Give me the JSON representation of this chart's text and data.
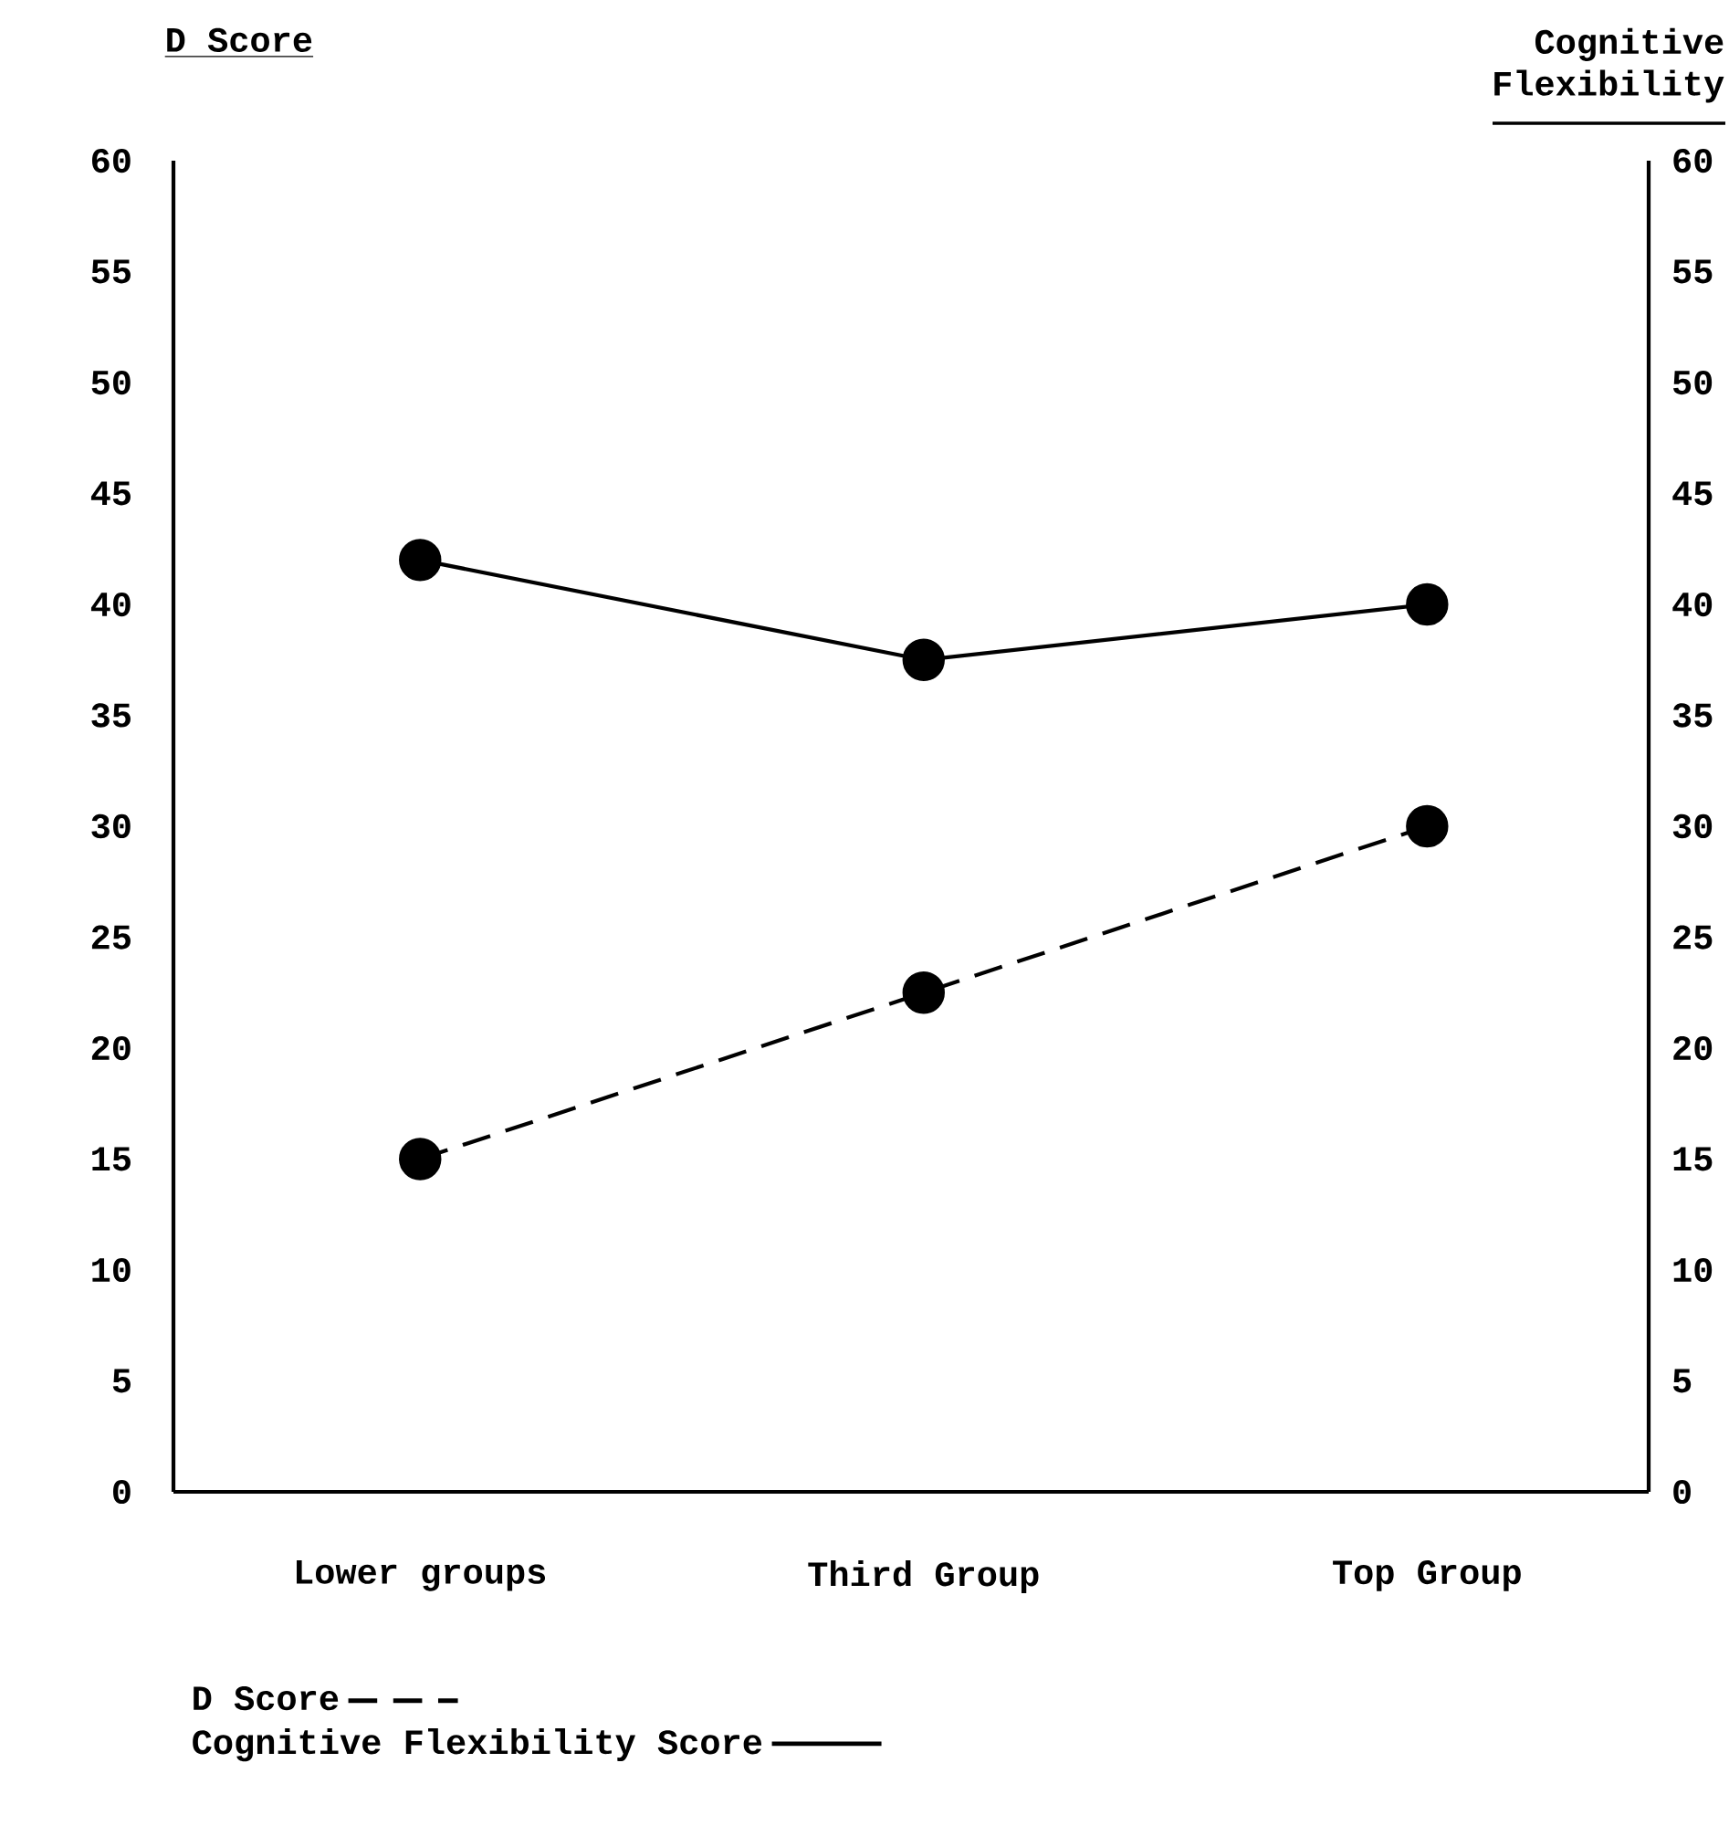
{
  "chart_data": {
    "type": "line",
    "categories": [
      "Lower groups",
      "Third Group",
      "Top Group"
    ],
    "series": [
      {
        "name": "D Score",
        "color": "#000000",
        "values": [
          15,
          22.5,
          30
        ],
        "line_style": "dashed"
      },
      {
        "name": "Cognitive Flexibility Score",
        "color": "#000000",
        "values": [
          42,
          37.5,
          40
        ],
        "line_style": "solid",
        "axis": "y2"
      }
    ],
    "ylabel": "D Score",
    "y2label": "Cognitive Flexibility",
    "ylim": [
      0,
      60
    ],
    "yticks": [
      0,
      5,
      10,
      15,
      20,
      25,
      30,
      35,
      40,
      45,
      50,
      55,
      60
    ],
    "y2lim": [
      0,
      60
    ],
    "y2ticks": [
      0,
      5,
      10,
      15,
      20,
      25,
      30,
      35,
      40,
      45,
      50,
      55,
      60
    ],
    "marker": "circle",
    "legend": "bottom",
    "grid": false
  }
}
